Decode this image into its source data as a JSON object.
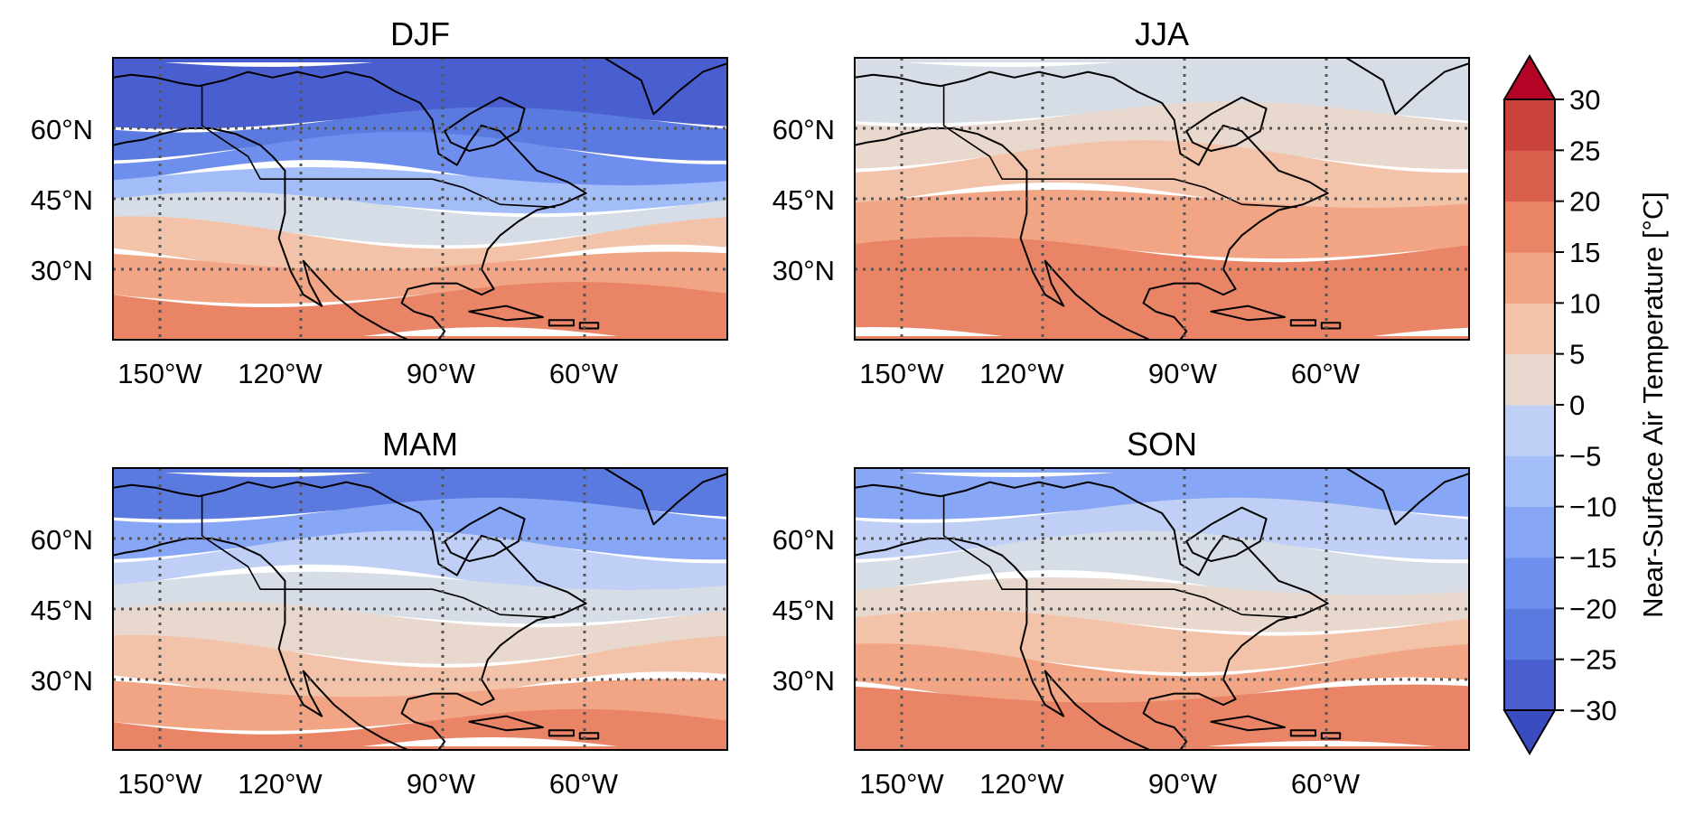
{
  "figure": {
    "panels": [
      {
        "title": "DJF",
        "lat_labels": [
          "60°N",
          "45°N",
          "30°N"
        ],
        "lon_labels": [
          "150°W",
          "120°W",
          "90°W",
          "60°W"
        ],
        "temperature_zones": [
          {
            "from_north": 0.0,
            "to_north": 0.22,
            "celsius": -27.5,
            "area": "high arctic / Greenland"
          },
          {
            "from_north": 0.22,
            "to_north": 0.32,
            "celsius": -22.5
          },
          {
            "from_north": 0.32,
            "to_north": 0.42,
            "celsius": -17.5
          },
          {
            "from_north": 0.42,
            "to_north": 0.52,
            "celsius": -7.5
          },
          {
            "from_north": 0.52,
            "to_north": 0.62,
            "celsius": 2.5
          },
          {
            "from_north": 0.62,
            "to_north": 0.72,
            "celsius": 12.5
          },
          {
            "from_north": 0.72,
            "to_north": 0.84,
            "celsius": 17.5
          },
          {
            "from_north": 0.84,
            "to_north": 1.0,
            "celsius": 22.5
          }
        ]
      },
      {
        "title": "JJA",
        "lat_labels": [
          "60°N",
          "45°N",
          "30°N"
        ],
        "lon_labels": [
          "150°W",
          "120°W",
          "90°W",
          "60°W"
        ],
        "temperature_zones": [
          {
            "from_north": 0.0,
            "to_north": 0.2,
            "celsius": 2.5
          },
          {
            "from_north": 0.2,
            "to_north": 0.35,
            "celsius": 7.5
          },
          {
            "from_north": 0.35,
            "to_north": 0.5,
            "celsius": 12.5
          },
          {
            "from_north": 0.5,
            "to_north": 0.68,
            "celsius": 17.5
          },
          {
            "from_north": 0.68,
            "to_north": 1.0,
            "celsius": 22.5
          }
        ]
      },
      {
        "title": "MAM",
        "lat_labels": [
          "60°N",
          "45°N",
          "30°N"
        ],
        "lon_labels": [
          "150°W",
          "120°W",
          "90°W",
          "60°W"
        ],
        "temperature_zones": [
          {
            "from_north": 0.0,
            "to_north": 0.15,
            "celsius": -22.5
          },
          {
            "from_north": 0.15,
            "to_north": 0.28,
            "celsius": -12.5
          },
          {
            "from_north": 0.28,
            "to_north": 0.4,
            "celsius": -2.5
          },
          {
            "from_north": 0.4,
            "to_north": 0.52,
            "celsius": 2.5
          },
          {
            "from_north": 0.52,
            "to_north": 0.65,
            "celsius": 7.5
          },
          {
            "from_north": 0.65,
            "to_north": 0.78,
            "celsius": 12.5
          },
          {
            "from_north": 0.78,
            "to_north": 0.9,
            "celsius": 17.5
          },
          {
            "from_north": 0.9,
            "to_north": 1.0,
            "celsius": 22.5
          }
        ]
      },
      {
        "title": "SON",
        "lat_labels": [
          "60°N",
          "45°N",
          "30°N"
        ],
        "lon_labels": [
          "150°W",
          "120°W",
          "90°W",
          "60°W"
        ],
        "temperature_zones": [
          {
            "from_north": 0.0,
            "to_north": 0.15,
            "celsius": -12.5
          },
          {
            "from_north": 0.15,
            "to_north": 0.28,
            "celsius": -2.5
          },
          {
            "from_north": 0.28,
            "to_north": 0.42,
            "celsius": 2.5
          },
          {
            "from_north": 0.42,
            "to_north": 0.55,
            "celsius": 7.5
          },
          {
            "from_north": 0.55,
            "to_north": 0.68,
            "celsius": 12.5
          },
          {
            "from_north": 0.68,
            "to_north": 0.8,
            "celsius": 17.5
          },
          {
            "from_north": 0.8,
            "to_north": 1.0,
            "celsius": 22.5
          }
        ]
      }
    ],
    "colorbar": {
      "label": "Near-Surface Air Temperature [°C]",
      "ticks": [
        "30",
        "25",
        "20",
        "15",
        "10",
        "5",
        "0",
        "−5",
        "−10",
        "−15",
        "−20",
        "−25",
        "−30"
      ],
      "levels": [
        -30,
        -25,
        -20,
        -15,
        -10,
        -5,
        0,
        5,
        10,
        15,
        20,
        25,
        30
      ],
      "extend": "both",
      "colors_low_to_high": [
        "#4a5fcf",
        "#5b7ae0",
        "#6f8fee",
        "#88a6f6",
        "#a3bdf8",
        "#bfcff5",
        "#d6dde6",
        "#e8d8ce",
        "#f3c3a9",
        "#f1a585",
        "#e98467",
        "#d9604d",
        "#c9433c"
      ],
      "under_color": "#3a4cc0",
      "over_color": "#b40426"
    }
  }
}
